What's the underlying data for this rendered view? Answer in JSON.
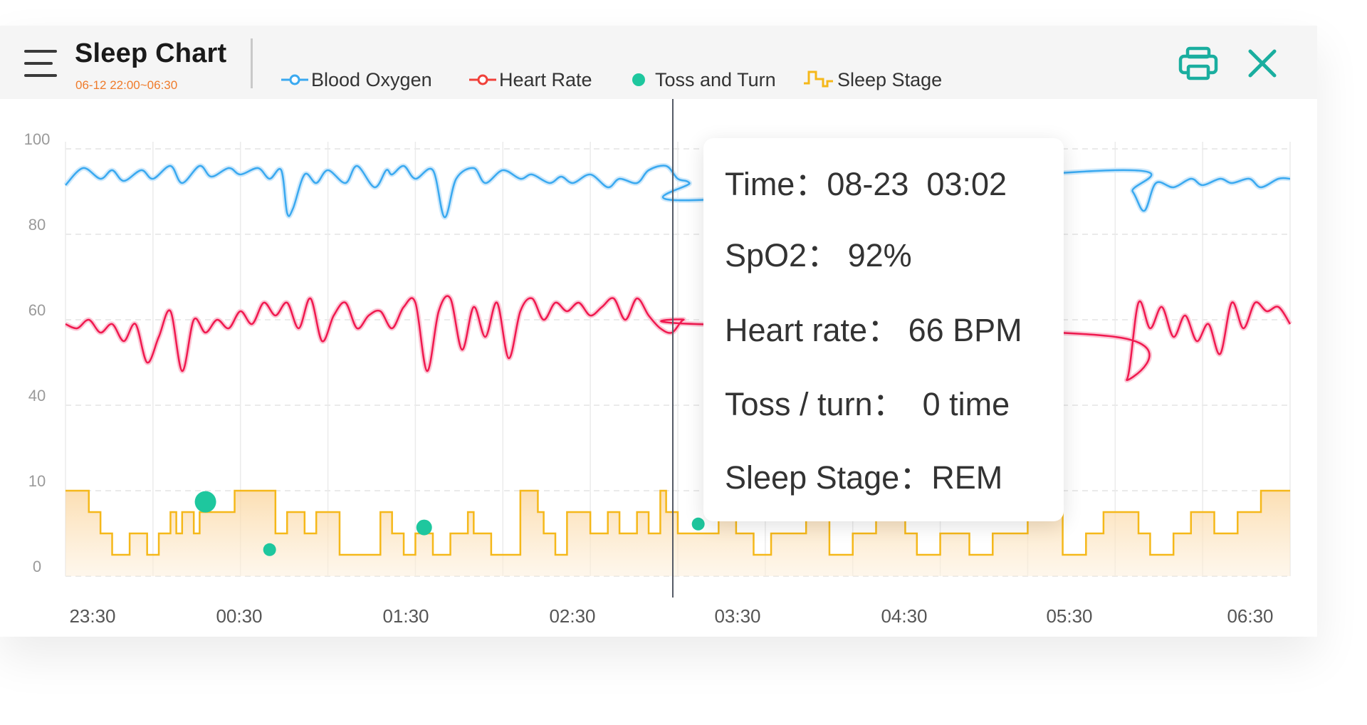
{
  "header": {
    "title": "Sleep Chart",
    "subtitle": "06-12 22:00~06:30",
    "print_icon": "printer-icon",
    "close_icon": "close-icon",
    "menu_icon": "hamburger-menu-icon"
  },
  "legend": [
    {
      "label": "Blood Oxygen",
      "color": "#3aa9f0",
      "marker": "line-circle"
    },
    {
      "label": "Heart Rate",
      "color": "#f0413a",
      "marker": "line-circle"
    },
    {
      "label": "Toss and Turn",
      "color": "#1ec79e",
      "marker": "dot"
    },
    {
      "label": "Sleep Stage",
      "color": "#f5b81a",
      "marker": "step"
    }
  ],
  "tooltip": {
    "time": "Time：08-23  03:02",
    "spo2": "SpO2： 92%",
    "heart_rate": "Heart rate： 66 BPM",
    "toss": "Toss / turn：  0 time",
    "stage": "Sleep Stage：REM"
  },
  "colors": {
    "accent": "#1aae9f",
    "spo2": "#3aa9f0",
    "heart": "#f0194f",
    "toss": "#1ec79e",
    "stage": "#f5b81a",
    "cursor": "#555b66"
  },
  "chart_data": {
    "type": "line",
    "x_ticks": [
      "23:30",
      "00:30",
      "01:30",
      "02:30",
      "03:30",
      "04:30",
      "05:30",
      "06:30"
    ],
    "y_ticks": [
      "100",
      "80",
      "60",
      "40",
      "10",
      "0"
    ],
    "x_range_minutes": [
      0,
      420
    ],
    "cursor_minutes": 210,
    "series": [
      {
        "name": "Blood Oxygen",
        "kind": "line",
        "x": [
          0,
          6,
          12,
          16,
          20,
          26,
          30,
          36,
          40,
          46,
          50,
          56,
          60,
          66,
          70,
          74,
          76,
          78,
          82,
          86,
          90,
          96,
          100,
          106,
          110,
          112,
          116,
          120,
          126,
          130,
          134,
          140,
          144,
          150,
          156,
          160,
          166,
          170,
          174,
          180,
          186,
          190,
          196,
          200,
          206,
          210,
          214,
          216,
          360,
          366,
          370,
          374,
          380,
          386,
          390,
          396,
          400,
          406,
          410,
          416,
          420
        ],
        "values": [
          91.5,
          95.5,
          93,
          95,
          92.5,
          95,
          93,
          96,
          92,
          96,
          93.5,
          95.5,
          94,
          95.5,
          93,
          95,
          85,
          86,
          94,
          92,
          95,
          92,
          96,
          91,
          95,
          94,
          96,
          93,
          95,
          84,
          93,
          95.5,
          92,
          95,
          93,
          94,
          92,
          93.5,
          92,
          94,
          91,
          93,
          92,
          95,
          96,
          93,
          92,
          88,
          95,
          90,
          85.5,
          92,
          91,
          93,
          91.5,
          93,
          92,
          93,
          91,
          93,
          93
        ]
      },
      {
        "name": "Heart Rate",
        "kind": "line",
        "x": [
          0,
          4,
          8,
          12,
          16,
          20,
          24,
          28,
          32,
          36,
          40,
          44,
          48,
          52,
          56,
          60,
          64,
          68,
          72,
          76,
          80,
          84,
          88,
          92,
          96,
          100,
          104,
          108,
          112,
          116,
          120,
          124,
          128,
          132,
          136,
          140,
          144,
          148,
          152,
          156,
          160,
          164,
          168,
          172,
          176,
          180,
          184,
          188,
          192,
          196,
          200,
          204,
          208,
          212,
          216,
          360,
          364,
          368,
          372,
          376,
          380,
          384,
          388,
          392,
          396,
          400,
          404,
          408,
          412,
          416,
          420
        ],
        "values": [
          59,
          58,
          60,
          57,
          59,
          55,
          59,
          50,
          56,
          62,
          48,
          60,
          57,
          60,
          58,
          62,
          59,
          64,
          61,
          64,
          58,
          65,
          55,
          61,
          64,
          58,
          61,
          62,
          58,
          63,
          64,
          48,
          62,
          65,
          53,
          63,
          56,
          64,
          51,
          62,
          65,
          60,
          64,
          62,
          64,
          61,
          63,
          65,
          60,
          65,
          61,
          58,
          57,
          60,
          59,
          56,
          46,
          64,
          58,
          63,
          56,
          61,
          55,
          59,
          52,
          64,
          58,
          64,
          62,
          63,
          59
        ]
      },
      {
        "name": "Toss and Turn",
        "kind": "scatter",
        "points": [
          {
            "x": 48,
            "y": 8.7,
            "size": "large"
          },
          {
            "x": 70,
            "y": 3.1,
            "size": "small"
          },
          {
            "x": 123,
            "y": 5.7,
            "size": "medium"
          },
          {
            "x": 217,
            "y": 6.1,
            "size": "small"
          }
        ]
      },
      {
        "name": "Sleep Stage",
        "kind": "step",
        "x": [
          0,
          8,
          12,
          16,
          22,
          28,
          32,
          36,
          38,
          40,
          44,
          46,
          58,
          72,
          76,
          82,
          86,
          94,
          108,
          112,
          116,
          120,
          126,
          132,
          138,
          140,
          146,
          156,
          162,
          164,
          168,
          172,
          180,
          186,
          190,
          196,
          200,
          204,
          206,
          210,
          224,
          230,
          236,
          242,
          254,
          262,
          270,
          278,
          288,
          292,
          300,
          310,
          318,
          330,
          342,
          350,
          356,
          368,
          372,
          380,
          386,
          394,
          402,
          410,
          420
        ],
        "values": [
          10,
          7.5,
          5,
          2.5,
          5,
          2.5,
          5,
          7.5,
          5,
          7.5,
          5,
          7.5,
          10,
          5,
          7.5,
          5,
          7.5,
          2.5,
          7.5,
          5,
          2.5,
          5,
          2.5,
          5,
          7.5,
          5,
          2.5,
          10,
          7.5,
          5,
          2.5,
          7.5,
          5,
          7.5,
          5,
          7.5,
          5,
          10,
          7.5,
          5,
          7.5,
          5,
          2.5,
          5,
          7.5,
          2.5,
          5,
          7.5,
          5,
          2.5,
          5,
          2.5,
          5,
          7.5,
          2.5,
          5,
          7.5,
          5,
          2.5,
          5,
          7.5,
          5,
          7.5,
          10,
          10
        ]
      }
    ]
  }
}
